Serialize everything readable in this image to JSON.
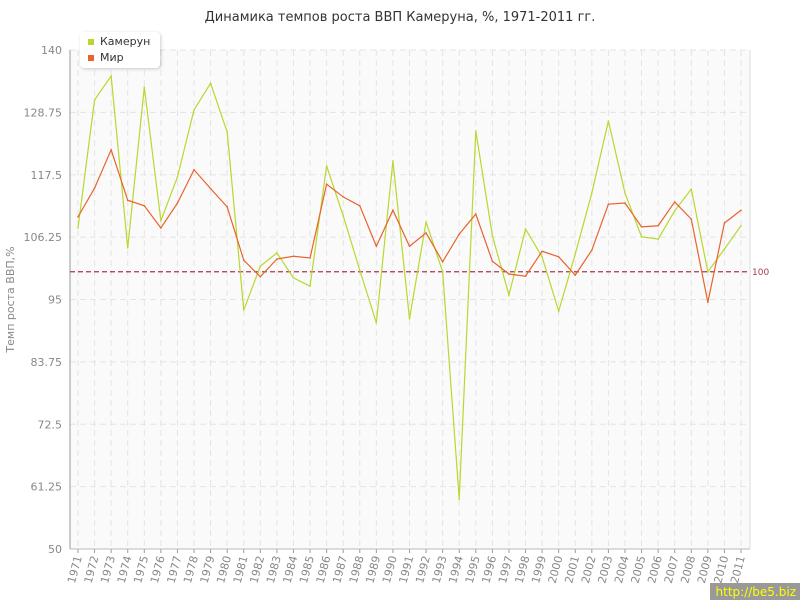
{
  "chart_data": {
    "type": "line",
    "title": "Динамика темпов роста ВВП Камеруна, %, 1971-2011 гг.",
    "xlabel": "",
    "ylabel": "Темп роста ВВП,%",
    "ylim": [
      50,
      140
    ],
    "yticks": [
      "50",
      "61.25",
      "72.5",
      "83.75",
      "95",
      "106.25",
      "117.5",
      "128.75",
      "140"
    ],
    "grid": true,
    "legend_placement": "top-left",
    "x": [
      "1971",
      "1972",
      "1973",
      "1974",
      "1975",
      "1976",
      "1977",
      "1978",
      "1979",
      "1980",
      "1981",
      "1982",
      "1983",
      "1984",
      "1985",
      "1986",
      "1987",
      "1988",
      "1989",
      "1990",
      "1991",
      "1992",
      "1993",
      "1994",
      "1995",
      "1996",
      "1997",
      "1998",
      "1999",
      "2000",
      "2001",
      "2002",
      "2003",
      "2004",
      "2005",
      "2006",
      "2007",
      "2008",
      "2009",
      "2010",
      "2011"
    ],
    "series": [
      {
        "name": "Камерун",
        "color": "#b8d82e",
        "values": [
          107.9,
          131.0,
          135.3,
          104.3,
          133.3,
          109.2,
          117.1,
          129.2,
          134.0,
          125.2,
          93.1,
          101.0,
          103.4,
          98.9,
          97.4,
          119.1,
          110.1,
          100.3,
          90.8,
          120.0,
          91.5,
          109.0,
          100.0,
          59.0,
          125.4,
          106.5,
          95.8,
          107.7,
          102.7,
          92.9,
          103.2,
          114.2,
          127.2,
          114.2,
          106.3,
          105.9,
          111.0,
          114.9,
          100.0,
          104.1,
          108.3
        ]
      },
      {
        "name": "Мир",
        "color": "#e8632e",
        "values": [
          109.9,
          115.1,
          122.0,
          112.9,
          111.9,
          107.9,
          112.4,
          118.4,
          115.0,
          111.7,
          102.1,
          99.1,
          102.3,
          102.8,
          102.5,
          115.8,
          113.5,
          111.9,
          104.6,
          111.1,
          104.6,
          107.0,
          101.8,
          106.8,
          110.4,
          101.9,
          99.6,
          99.2,
          103.7,
          102.7,
          99.4,
          103.9,
          112.2,
          112.4,
          108.1,
          108.3,
          112.6,
          109.5,
          94.5,
          108.8,
          111.1
        ]
      }
    ],
    "reference_line": {
      "value": 100,
      "label": "100",
      "color": "#a83a4e"
    }
  },
  "watermark": "http://be5.biz"
}
